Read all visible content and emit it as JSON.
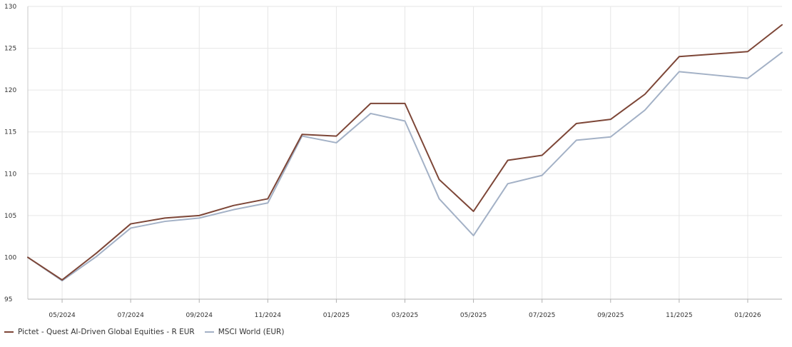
{
  "chart_data": {
    "type": "line",
    "title": "",
    "xlabel": "",
    "ylabel": "",
    "x": [
      "04/2024",
      "05/2024",
      "06/2024",
      "07/2024",
      "08/2024",
      "09/2024",
      "10/2024",
      "11/2024",
      "12/2024",
      "01/2025",
      "02/2025",
      "03/2025",
      "04/2025",
      "05/2025",
      "06/2025",
      "07/2025",
      "08/2025",
      "09/2025",
      "10/2025",
      "11/2025",
      "12/2025",
      "01/2026",
      "02/2026"
    ],
    "x_tick_labels": [
      "05/2024",
      "07/2024",
      "09/2024",
      "11/2024",
      "01/2025",
      "03/2025",
      "05/2025",
      "07/2025",
      "09/2025",
      "11/2025",
      "01/2026"
    ],
    "y_ticks": [
      95,
      100,
      105,
      110,
      115,
      120,
      125,
      130
    ],
    "ylim": [
      95,
      130
    ],
    "grid": true,
    "legend_position": "bottom-left",
    "series": [
      {
        "name": "Pictet - Quest AI-Driven Global Equities - R EUR",
        "color": "#7d4637",
        "values": [
          100.0,
          97.3,
          100.5,
          104.0,
          104.7,
          105.0,
          106.2,
          107.0,
          114.7,
          114.5,
          118.4,
          118.4,
          109.3,
          105.5,
          111.6,
          112.2,
          116.0,
          116.5,
          119.5,
          124.0,
          124.3,
          124.6,
          127.8
        ]
      },
      {
        "name": "MSCI World (EUR)",
        "color": "#a3b1c6",
        "values": [
          100.0,
          97.2,
          100.1,
          103.5,
          104.3,
          104.7,
          105.7,
          106.5,
          114.5,
          113.7,
          117.2,
          116.3,
          107.0,
          102.6,
          108.8,
          109.8,
          114.0,
          114.4,
          117.6,
          122.2,
          121.8,
          121.4,
          124.5
        ]
      }
    ]
  }
}
